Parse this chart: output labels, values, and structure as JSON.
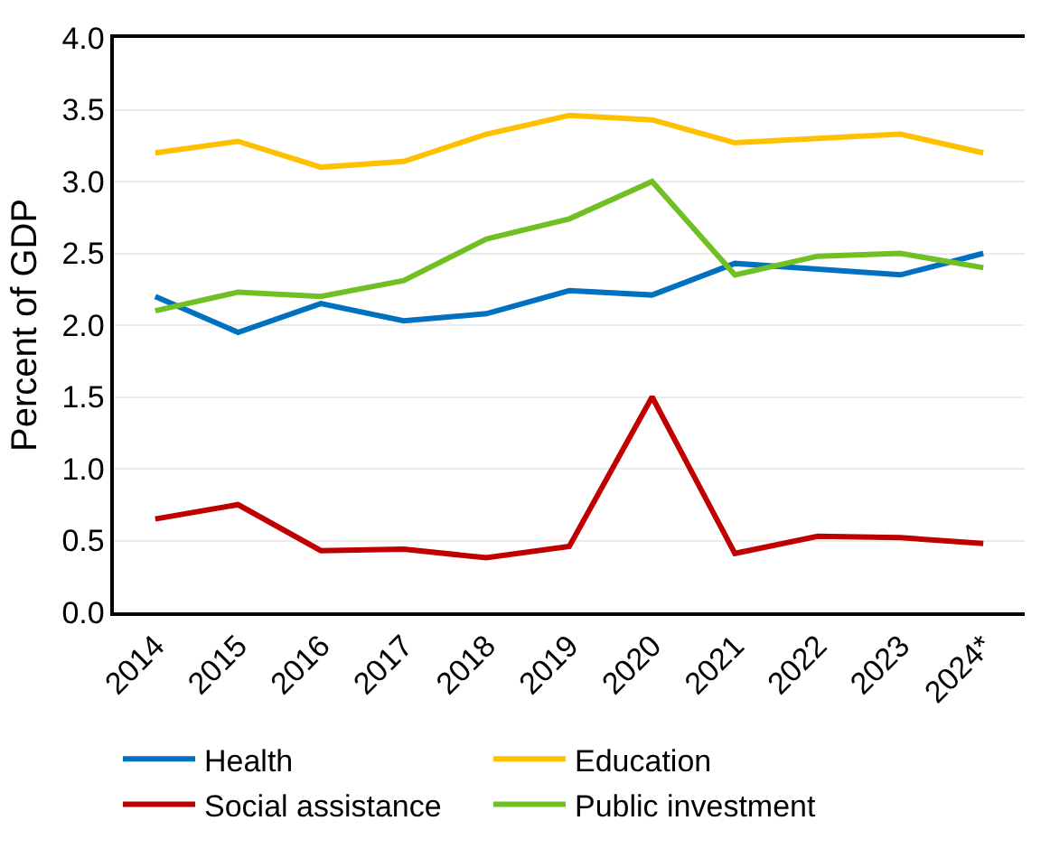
{
  "chart_data": {
    "type": "line",
    "ylabel": "Percent of GDP",
    "categories": [
      "2014",
      "2015",
      "2016",
      "2017",
      "2018",
      "2019",
      "2020",
      "2021",
      "2022",
      "2023",
      "2024*"
    ],
    "series": [
      {
        "name": "Health",
        "color": "#0070c0",
        "values": [
          2.2,
          1.95,
          2.15,
          2.03,
          2.08,
          2.24,
          2.21,
          2.43,
          2.39,
          2.35,
          2.5
        ]
      },
      {
        "name": "Education",
        "color": "#ffc000",
        "values": [
          3.2,
          3.28,
          3.1,
          3.14,
          3.33,
          3.46,
          3.43,
          3.27,
          3.3,
          3.33,
          3.2
        ]
      },
      {
        "name": "Social assistance",
        "color": "#c00000",
        "values": [
          0.65,
          0.75,
          0.43,
          0.44,
          0.38,
          0.46,
          1.5,
          0.41,
          0.53,
          0.52,
          0.48
        ]
      },
      {
        "name": "Public investment",
        "color": "#70bf25",
        "values": [
          2.1,
          2.23,
          2.2,
          2.31,
          2.6,
          2.74,
          3.0,
          2.35,
          2.48,
          2.5,
          2.4
        ]
      }
    ],
    "ylim": [
      0,
      4
    ],
    "yticks": [
      {
        "value": 0,
        "label": "0.0"
      },
      {
        "value": 0.5,
        "label": "0.5"
      },
      {
        "value": 1,
        "label": "1.0"
      },
      {
        "value": 1.5,
        "label": "1.5"
      },
      {
        "value": 2,
        "label": "2.0"
      },
      {
        "value": 2.5,
        "label": "2.5"
      },
      {
        "value": 3,
        "label": "3.0"
      },
      {
        "value": 3.5,
        "label": "3.5"
      },
      {
        "value": 4,
        "label": "4.0"
      }
    ],
    "grid": "y",
    "legend": "bottom",
    "marker": "none",
    "line_style": "solid"
  }
}
